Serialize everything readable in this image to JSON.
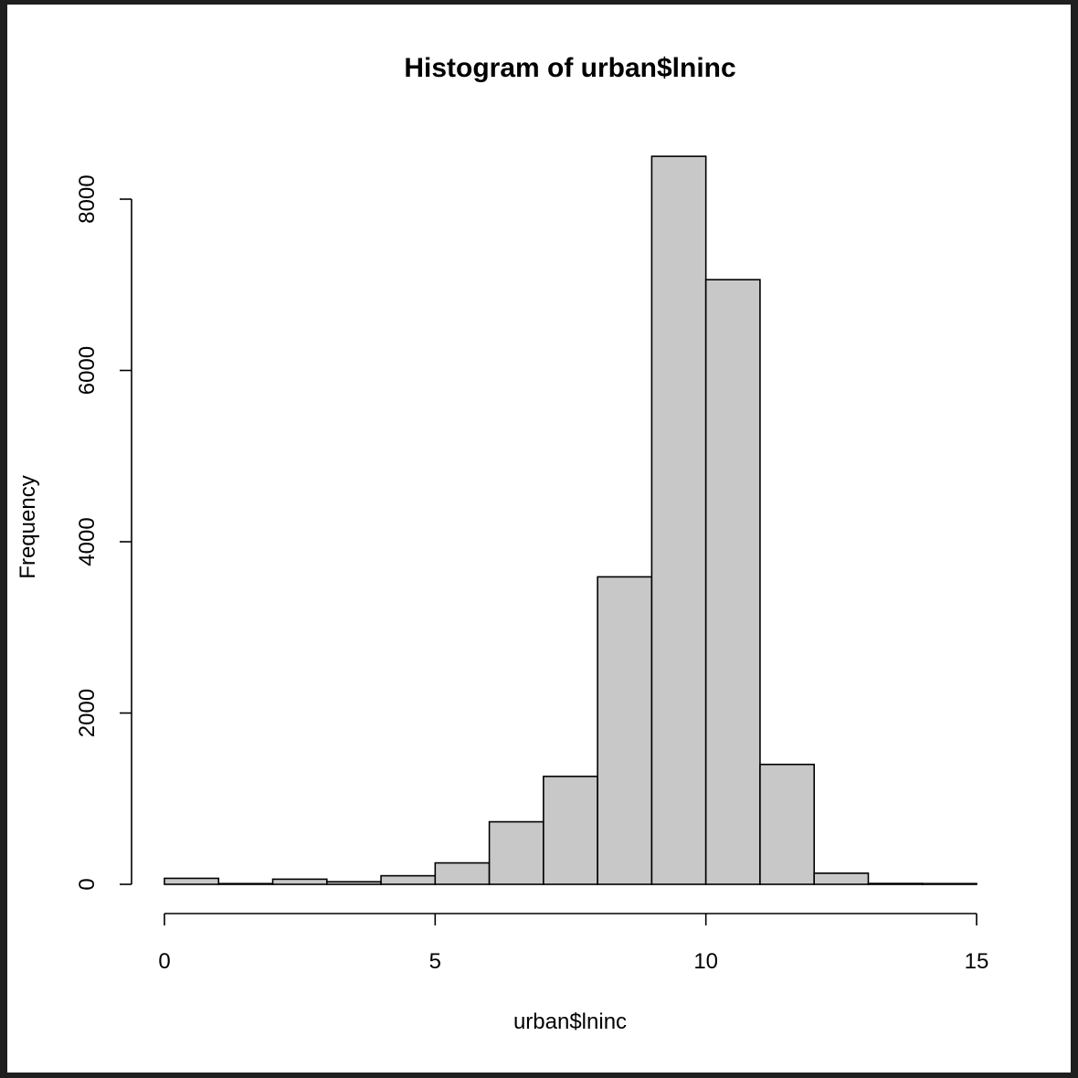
{
  "chart_data": {
    "type": "bar",
    "title": "Histogram of urban$lninc",
    "xlabel": "urban$lninc",
    "ylabel": "Frequency",
    "bins": [
      {
        "from": 0,
        "to": 1,
        "count": 70
      },
      {
        "from": 1,
        "to": 2,
        "count": 5
      },
      {
        "from": 2,
        "to": 3,
        "count": 60
      },
      {
        "from": 3,
        "to": 4,
        "count": 30
      },
      {
        "from": 4,
        "to": 5,
        "count": 100
      },
      {
        "from": 5,
        "to": 6,
        "count": 250
      },
      {
        "from": 6,
        "to": 7,
        "count": 730
      },
      {
        "from": 7,
        "to": 8,
        "count": 1260
      },
      {
        "from": 8,
        "to": 9,
        "count": 3590
      },
      {
        "from": 9,
        "to": 10,
        "count": 8500
      },
      {
        "from": 10,
        "to": 11,
        "count": 7060
      },
      {
        "from": 11,
        "to": 12,
        "count": 1400
      },
      {
        "from": 12,
        "to": 13,
        "count": 130
      },
      {
        "from": 13,
        "to": 14,
        "count": 10
      },
      {
        "from": 14,
        "to": 15,
        "count": 2
      }
    ],
    "x_ticks": [
      0,
      5,
      10,
      15
    ],
    "y_ticks": [
      0,
      2000,
      4000,
      6000,
      8000
    ],
    "xlim": [
      0,
      15
    ],
    "ylim": [
      0,
      8500
    ],
    "bar_color": "#c8c8c8",
    "border_color": "#000000",
    "grid": false,
    "legend": "none"
  }
}
